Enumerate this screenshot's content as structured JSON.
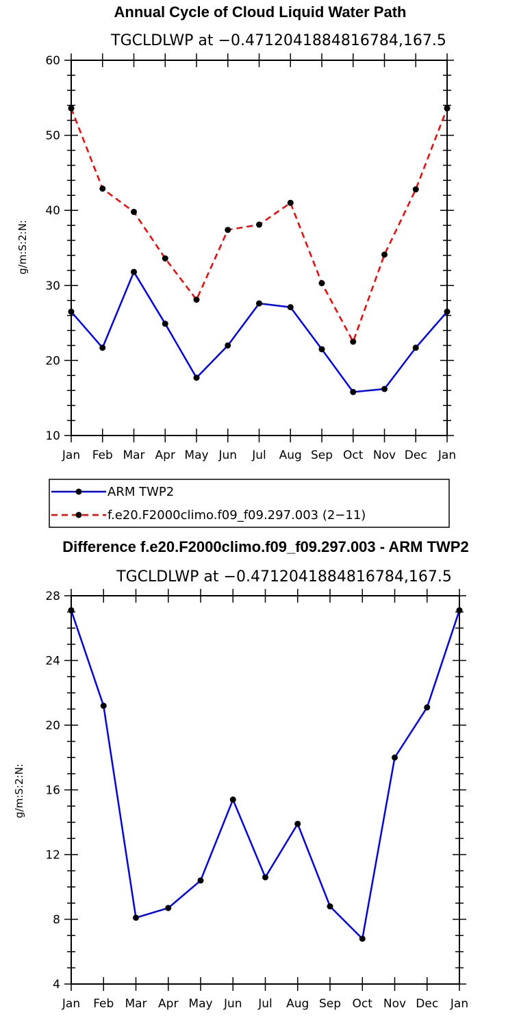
{
  "chart_data": [
    {
      "type": "line",
      "title": "Annual Cycle of Cloud Liquid Water Path",
      "subtitle": "TGCLDLWP at −0.4712041884816784,167.5",
      "ylabel": "g/m:S:2:N:",
      "xlabel": "",
      "categories": [
        "Jan",
        "Feb",
        "Mar",
        "Apr",
        "May",
        "Jun",
        "Jul",
        "Aug",
        "Sep",
        "Oct",
        "Nov",
        "Dec",
        "Jan"
      ],
      "ylim": [
        10,
        60
      ],
      "yticks": [
        10,
        20,
        30,
        40,
        50,
        60
      ],
      "yminor": 2,
      "legend": "bottom",
      "series": [
        {
          "name": "ARM TWP2",
          "color": "#0000ff",
          "style": "solid",
          "values": [
            26.5,
            21.7,
            31.8,
            24.9,
            17.7,
            22.0,
            27.6,
            27.1,
            21.5,
            15.8,
            16.2,
            21.7,
            26.5
          ]
        },
        {
          "name": "f.e20.F2000climo.f09_f09.297.003 (2−11)",
          "color": "#ff0000",
          "style": "dashed",
          "values": [
            53.6,
            42.9,
            39.8,
            33.6,
            28.1,
            37.4,
            38.1,
            41.0,
            30.3,
            22.5,
            34.1,
            42.8,
            53.6
          ]
        }
      ]
    },
    {
      "type": "line",
      "title": "Difference f.e20.F2000climo.f09_f09.297.003 - ARM TWP2",
      "subtitle": "TGCLDLWP at −0.4712041884816784,167.5",
      "ylabel": "g/m:S:2:N:",
      "xlabel": "",
      "categories": [
        "Jan",
        "Feb",
        "Mar",
        "Apr",
        "May",
        "Jun",
        "Jul",
        "Aug",
        "Sep",
        "Oct",
        "Nov",
        "Dec",
        "Jan"
      ],
      "ylim": [
        4,
        28
      ],
      "yticks": [
        4,
        8,
        12,
        16,
        20,
        24,
        28
      ],
      "yminor": 1,
      "series": [
        {
          "color": "#0000ff",
          "style": "solid",
          "values": [
            27.1,
            21.2,
            8.1,
            8.7,
            10.4,
            15.4,
            10.6,
            13.9,
            8.8,
            6.8,
            18.0,
            21.1,
            27.1
          ]
        }
      ]
    }
  ]
}
